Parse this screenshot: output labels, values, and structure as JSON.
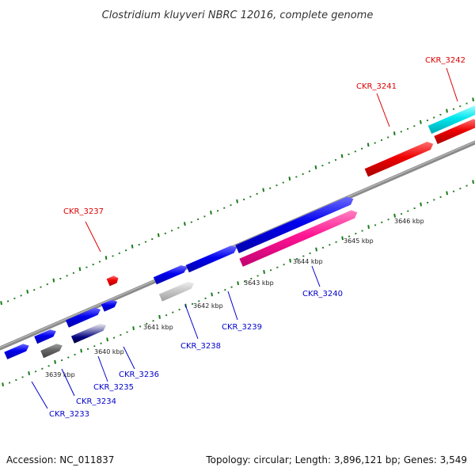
{
  "title": "Clostridium kluyveri NBRC 12016, complete genome",
  "footer": {
    "accession": "Accession: NC_011837",
    "topology": "Topology: circular; Length: 3,896,121 bp; Genes: 3,549"
  },
  "kbp_labels": [
    "3639 kbp",
    "3640 kbp",
    "3641 kbp",
    "3642 kbp",
    "3643 kbp",
    "3644 kbp",
    "3645 kbp",
    "3646 kbp"
  ],
  "gene_labels": [
    {
      "text": "CKR_3233",
      "color": "#0000cc"
    },
    {
      "text": "CKR_3234",
      "color": "#0000cc"
    },
    {
      "text": "CKR_3235",
      "color": "#0000cc"
    },
    {
      "text": "CKR_3236",
      "color": "#0000cc"
    },
    {
      "text": "CKR_3237",
      "color": "#dd0000"
    },
    {
      "text": "CKR_3238",
      "color": "#0000cc"
    },
    {
      "text": "CKR_3239",
      "color": "#0000cc"
    },
    {
      "text": "CKR_3240",
      "color": "#0000cc"
    },
    {
      "text": "CKR_3241",
      "color": "#dd0000"
    },
    {
      "text": "CKR_3242",
      "color": "#dd0000"
    }
  ],
  "colors": {
    "backbone": "#8a8a8a",
    "ticks": "#1a7a1a",
    "forward_gene": "#0000ee",
    "rna_gene": "#ee0000",
    "pink_gene": "#ff1493",
    "cyan_gene": "#00e5ee",
    "gray_gene": "#666666",
    "light_gene": "#c8c8c8",
    "navy_gene": "#000080"
  }
}
